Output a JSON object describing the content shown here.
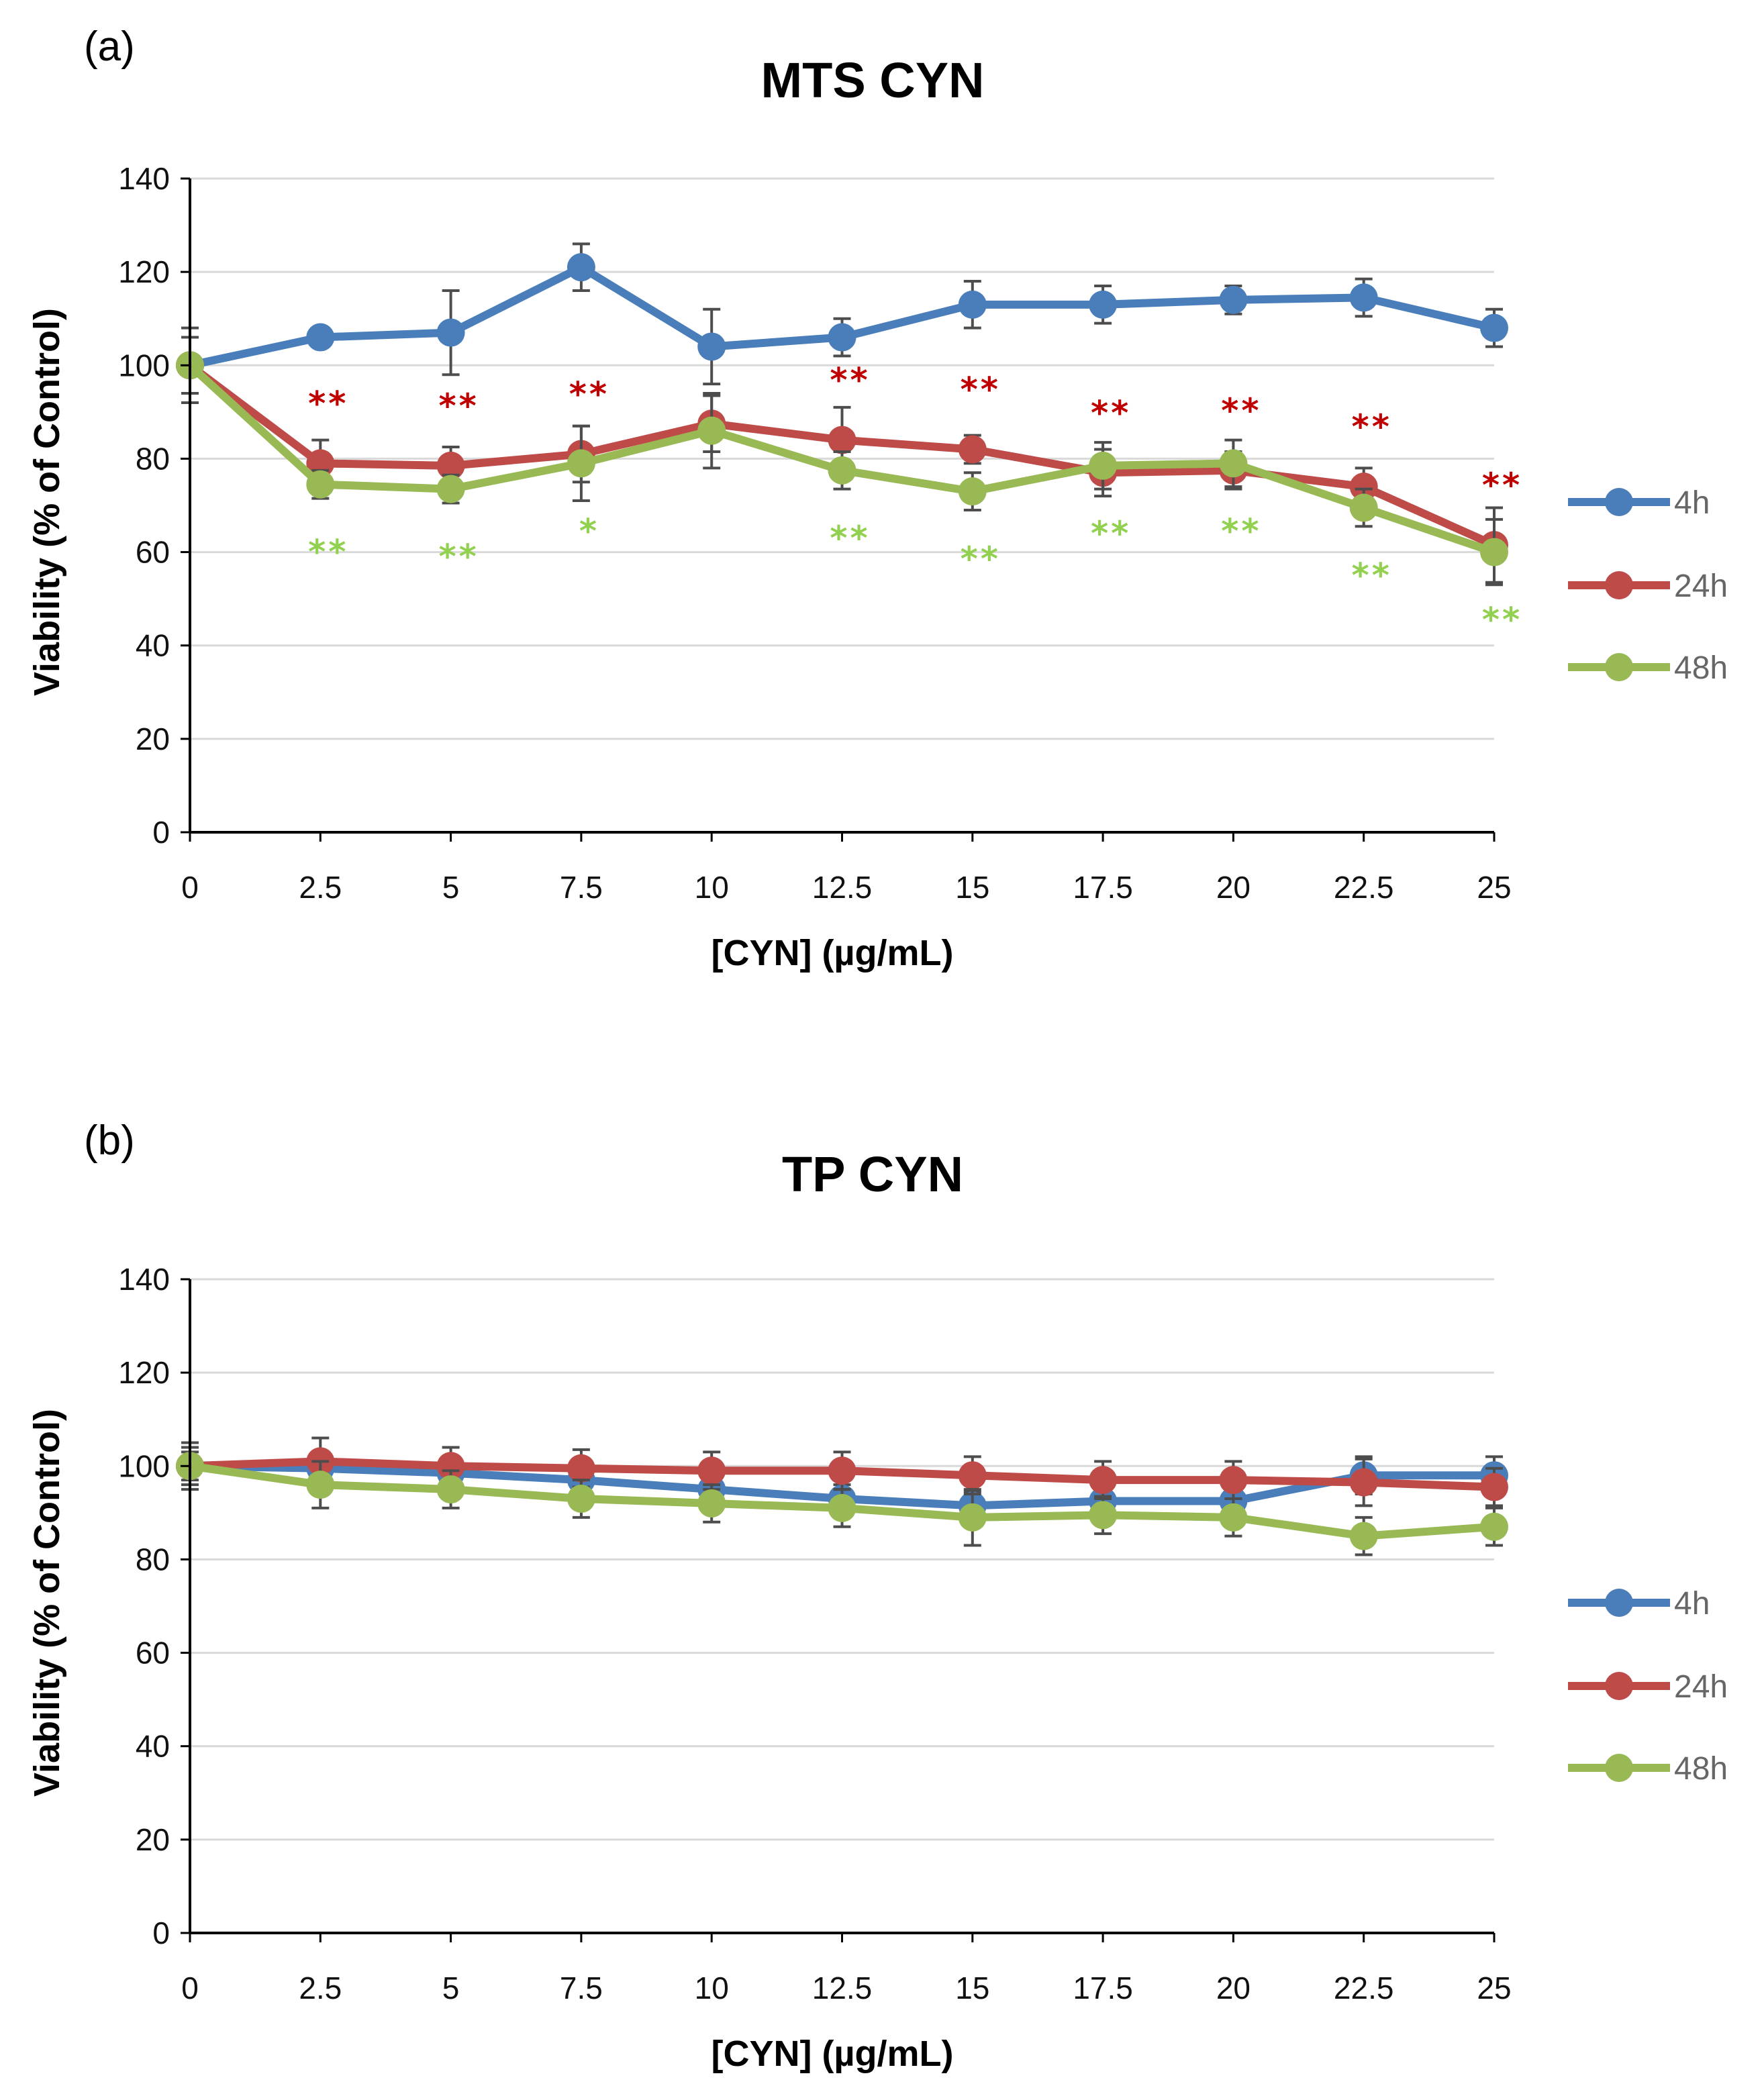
{
  "colors": {
    "4h": "#4a7ebb",
    "24h": "#be4b48",
    "48h": "#98b954",
    "grid": "#d9d9d9",
    "errorbar": "#4d4d4d",
    "sig_red": "#c00000",
    "sig_green": "#92d050"
  },
  "chart_data": [
    {
      "panel_label": "(a)",
      "type": "line",
      "title": "MTS CYN",
      "xlabel": "[CYN] (µg/mL)",
      "ylabel": "Viability (% of Control)",
      "ylim": [
        0,
        140
      ],
      "yticks": [
        "0",
        "20",
        "40",
        "60",
        "80",
        "100",
        "120",
        "140"
      ],
      "categories": [
        "0",
        "2.5",
        "5",
        "7.5",
        "10",
        "12.5",
        "15",
        "17.5",
        "20",
        "22.5",
        "25"
      ],
      "legend": [
        "4h",
        "24h",
        "48h"
      ],
      "series": [
        {
          "name": "4h",
          "values": [
            100,
            106,
            107,
            121,
            104,
            106,
            113,
            113,
            114,
            114.5,
            108
          ],
          "errors": [
            8,
            2,
            9,
            5,
            8,
            4,
            5,
            4,
            3,
            4,
            4
          ]
        },
        {
          "name": "24h",
          "values": [
            100,
            79,
            78.5,
            81,
            87.5,
            84,
            82,
            77,
            77.5,
            74,
            61.5
          ],
          "errors": [
            6,
            5,
            4,
            6,
            6,
            7,
            3,
            5,
            4,
            4,
            8
          ]
        },
        {
          "name": "48h",
          "values": [
            100,
            74.5,
            73.5,
            79,
            86,
            77.5,
            73,
            78.5,
            79,
            69.5,
            60
          ],
          "errors": [
            6,
            3,
            3,
            8,
            8,
            4,
            4,
            5,
            5,
            4,
            7
          ]
        }
      ],
      "significance": {
        "24h": [
          "",
          "**",
          "**",
          "**",
          "",
          "**",
          "**",
          "**",
          "**",
          "**",
          "**"
        ],
        "48h": [
          "",
          "**",
          "**",
          "*",
          "",
          "**",
          "**",
          "**",
          "**",
          "**",
          "**"
        ]
      }
    },
    {
      "panel_label": "(b)",
      "type": "line",
      "title": "TP CYN",
      "xlabel": "[CYN] (µg/mL)",
      "ylabel": "Viability (% of Control)",
      "ylim": [
        0,
        140
      ],
      "yticks": [
        "0",
        "20",
        "40",
        "60",
        "80",
        "100",
        "120",
        "140"
      ],
      "categories": [
        "0",
        "2.5",
        "5",
        "7.5",
        "10",
        "12.5",
        "15",
        "17.5",
        "20",
        "22.5",
        "25"
      ],
      "legend": [
        "4h",
        "24h",
        "48h"
      ],
      "series": [
        {
          "name": "4h",
          "values": [
            100,
            99.5,
            98.5,
            97,
            95,
            93,
            91.5,
            92.5,
            92.5,
            98,
            98
          ],
          "errors": [
            3,
            3,
            3,
            3,
            3,
            3,
            3,
            3,
            3,
            4,
            4
          ]
        },
        {
          "name": "24h",
          "values": [
            100,
            101,
            100,
            99.5,
            99,
            99,
            98,
            97,
            97,
            96.5,
            95.5
          ],
          "errors": [
            4,
            5,
            4,
            4,
            4,
            4,
            4,
            4,
            4,
            5,
            4
          ]
        },
        {
          "name": "48h",
          "values": [
            100,
            96,
            95,
            93,
            92,
            91,
            89,
            89.5,
            89,
            85,
            87
          ],
          "errors": [
            5,
            5,
            4,
            4,
            4,
            4,
            6,
            4,
            4,
            4,
            4
          ]
        }
      ],
      "significance": {
        "24h": [],
        "48h": []
      }
    }
  ]
}
